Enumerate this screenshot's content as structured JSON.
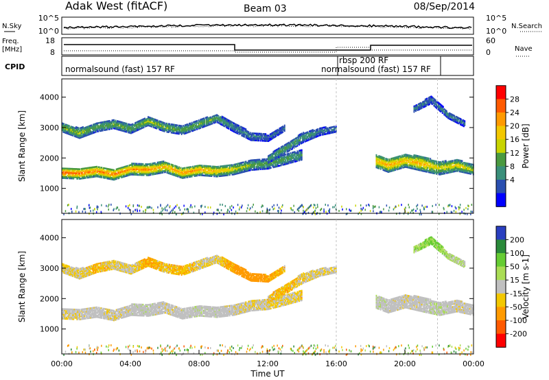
{
  "header": {
    "station": "Adak West (fitACF)",
    "beam": "Beam 03",
    "date": "08/Sep/2014"
  },
  "noise_panel": {
    "left_label": "N.Sky",
    "left_ticks": [
      "10^5",
      "10^0"
    ],
    "right_label": "N.Search",
    "right_ticks": [
      "10^5",
      "10^0"
    ]
  },
  "freq_panel": {
    "left_label_top": "Freq.",
    "left_label_unit": "[MHz]",
    "left_ticks": [
      "18",
      "8"
    ],
    "right_label": "Nave",
    "right_ticks": [
      "60",
      "0"
    ]
  },
  "cpid_panel": {
    "label": "CPID",
    "segments": [
      {
        "name": "normalsound (fast) 157 RF",
        "start_hour": 0
      },
      {
        "name": "rbsp 200 RF",
        "start_hour": 16
      },
      {
        "name": "normalsound (fast) 157 RF",
        "start_hour": 16
      }
    ]
  },
  "x_axis": {
    "title": "Time UT",
    "ticks": [
      "00:00",
      "04:00",
      "08:00",
      "12:00",
      "16:00",
      "20:00",
      "00:00"
    ],
    "range_hours": [
      0,
      24
    ]
  },
  "power_panel": {
    "ylabel": "Slant Range [km]",
    "yticks": [
      "4000",
      "3000",
      "2000",
      "1000"
    ],
    "colorbar_label": "Power [dB]",
    "colorbar_ticks": [
      "28",
      "24",
      "20",
      "16",
      "12",
      "8",
      "4"
    ],
    "colors": [
      "#ff0000",
      "#ff5a00",
      "#ff9a00",
      "#f3c800",
      "#c8d400",
      "#4a9a40",
      "#3a8f7a",
      "#2a4fb0",
      "#0000ff"
    ]
  },
  "velocity_panel": {
    "ylabel": "Slant Range [km]",
    "yticks": [
      "4000",
      "3000",
      "2000",
      "1000"
    ],
    "colorbar_label": "Velocity [m s-1]",
    "colorbar_ticks": [
      "200",
      "100",
      "50",
      "15",
      "-15",
      "-50",
      "-100",
      "-200"
    ],
    "colors": [
      "#2a3fc0",
      "#2a8a3a",
      "#66cc33",
      "#aadd55",
      "#c0c0c0",
      "#f3c800",
      "#ff9a00",
      "#ff5a00",
      "#ff0000"
    ]
  },
  "chart_data": {
    "type": "heatmap",
    "x_range_hours": [
      0,
      24
    ],
    "y_range_km": [
      180,
      4600
    ],
    "power_scale_db": [
      0,
      32
    ],
    "velocity_scale": [
      -250,
      250
    ],
    "echo_bands": [
      {
        "id": "f-region-lower",
        "t": [
          0,
          1,
          2,
          3,
          4,
          5,
          6,
          7,
          8,
          9,
          10,
          11,
          12,
          13,
          14
        ],
        "range_km": [
          1500,
          1480,
          1560,
          1450,
          1620,
          1600,
          1700,
          1500,
          1600,
          1550,
          1620,
          1750,
          1800,
          1950,
          2100
        ],
        "width_km": [
          350,
          360,
          360,
          360,
          360,
          370,
          360,
          350,
          360,
          350,
          350,
          320,
          330,
          340,
          330
        ],
        "power_db": [
          28,
          28,
          26,
          27,
          25,
          26,
          22,
          26,
          24,
          22,
          18,
          14,
          12,
          12,
          10
        ],
        "velocity": [
          -10,
          -5,
          0,
          -8,
          0,
          4,
          -6,
          0,
          5,
          3,
          -5,
          -10,
          -12,
          -15,
          -20
        ]
      },
      {
        "id": "f-region-upper",
        "t": [
          0,
          1,
          2,
          3,
          4,
          5,
          6,
          7,
          8,
          9,
          10,
          11,
          12,
          13
        ],
        "range_km": [
          3000,
          2800,
          3000,
          3100,
          2950,
          3200,
          3000,
          2900,
          3100,
          3300,
          3000,
          2700,
          2650,
          3000
        ],
        "width_km": [
          300,
          320,
          300,
          280,
          300,
          280,
          300,
          280,
          280,
          260,
          300,
          260,
          220,
          220
        ],
        "power_db": [
          14,
          16,
          12,
          14,
          12,
          16,
          14,
          12,
          14,
          12,
          8,
          8,
          6,
          6
        ],
        "velocity": [
          -20,
          -10,
          -30,
          -15,
          -10,
          -40,
          -20,
          -30,
          -15,
          -10,
          -40,
          -60,
          -40,
          -20
        ]
      },
      {
        "id": "afternoon-rise",
        "t": [
          12,
          13,
          14,
          15,
          16
        ],
        "range_km": [
          1950,
          2300,
          2650,
          2850,
          2950
        ],
        "width_km": [
          260,
          300,
          320,
          240,
          200
        ],
        "power_db": [
          10,
          12,
          10,
          8,
          6
        ],
        "velocity": [
          -20,
          -30,
          -20,
          -10,
          -10
        ]
      },
      {
        "id": "evening-lower",
        "t": [
          18.3,
          19,
          20,
          21,
          22,
          23,
          24
        ],
        "range_km": [
          1900,
          1750,
          1900,
          1800,
          1650,
          1750,
          1600
        ],
        "width_km": [
          450,
          450,
          420,
          480,
          420,
          380,
          320
        ],
        "power_db": [
          22,
          24,
          22,
          24,
          18,
          20,
          16
        ],
        "velocity": [
          10,
          0,
          -5,
          0,
          10,
          -5,
          0
        ]
      },
      {
        "id": "evening-upper",
        "t": [
          20.5,
          21.5,
          22.5,
          23.5
        ],
        "range_km": [
          3600,
          3900,
          3400,
          3100
        ],
        "width_km": [
          200,
          240,
          220,
          200
        ],
        "power_db": [
          8,
          6,
          8,
          6
        ],
        "velocity": [
          20,
          40,
          20,
          10
        ]
      }
    ]
  }
}
